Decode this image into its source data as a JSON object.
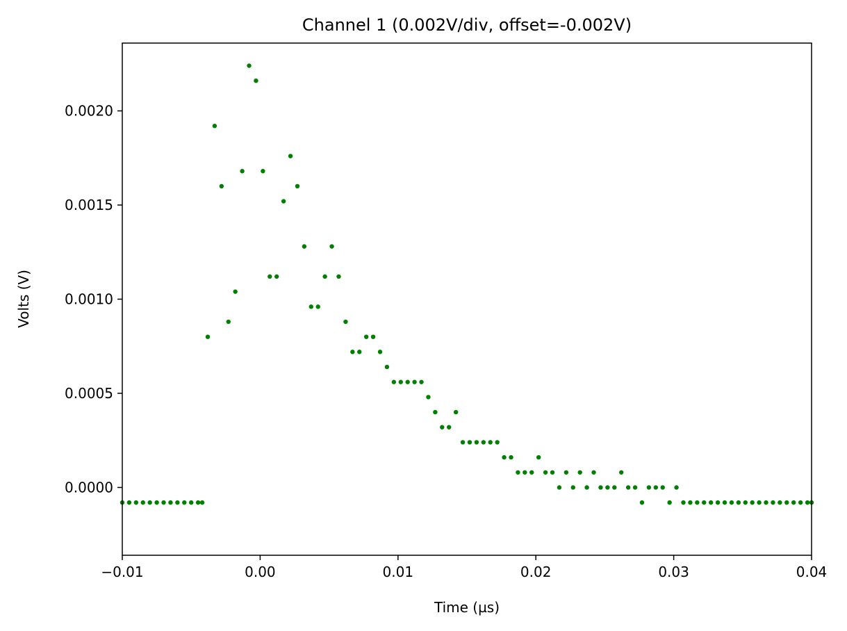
{
  "chart_data": {
    "type": "scatter",
    "title": "Channel 1 (0.002V/div, offset=-0.002V)",
    "xlabel": "Time (µs)",
    "ylabel": "Volts (V)",
    "xlim": [
      -0.01,
      0.04
    ],
    "ylim": [
      -0.00036,
      0.00236
    ],
    "xticks": [
      -0.01,
      0.0,
      0.01,
      0.02,
      0.03,
      0.04
    ],
    "xtick_labels": [
      "−0.01",
      "0.00",
      "0.01",
      "0.02",
      "0.03",
      "0.04"
    ],
    "yticks": [
      0.0,
      0.0005,
      0.001,
      0.0015,
      0.002
    ],
    "ytick_labels": [
      "0.0000",
      "0.0005",
      "0.0010",
      "0.0015",
      "0.0020"
    ],
    "grid": false,
    "legend": "none",
    "marker_color": "#008000",
    "series": [
      {
        "x": [
          -0.01,
          -0.0095,
          -0.009,
          -0.0085,
          -0.008,
          -0.0075,
          -0.007,
          -0.0065,
          -0.006,
          -0.0055,
          -0.005,
          -0.0045,
          -0.0042,
          -0.0038,
          -0.0033,
          -0.0028,
          -0.0023,
          -0.0018,
          -0.0013,
          -0.0008,
          -0.0003,
          0.0002,
          0.0007,
          0.0012,
          0.0017,
          0.0022,
          0.0027,
          0.0032,
          0.0037,
          0.0042,
          0.0047,
          0.0052,
          0.0057,
          0.0062,
          0.0067,
          0.0072,
          0.0077,
          0.0082,
          0.0087,
          0.0092,
          0.0097,
          0.0102,
          0.0107,
          0.0112,
          0.0117,
          0.0122,
          0.0127,
          0.0132,
          0.0137,
          0.0142,
          0.0147,
          0.0152,
          0.0157,
          0.0162,
          0.0167,
          0.0172,
          0.0177,
          0.0182,
          0.0187,
          0.0192,
          0.0197,
          0.0202,
          0.0207,
          0.0212,
          0.0217,
          0.0222,
          0.0227,
          0.0232,
          0.0237,
          0.0242,
          0.0247,
          0.0252,
          0.0257,
          0.0262,
          0.0267,
          0.0272,
          0.0277,
          0.0282,
          0.0287,
          0.0292,
          0.0297,
          0.0302,
          0.0307,
          0.0312,
          0.0317,
          0.0322,
          0.0327,
          0.0332,
          0.0337,
          0.0342,
          0.0347,
          0.0352,
          0.0357,
          0.0362,
          0.0367,
          0.0372,
          0.0377,
          0.0382,
          0.0387,
          0.0392,
          0.0397,
          0.04
        ],
        "y": [
          -8e-05,
          -8e-05,
          -8e-05,
          -8e-05,
          -8e-05,
          -8e-05,
          -8e-05,
          -8e-05,
          -8e-05,
          -8e-05,
          -8e-05,
          -8e-05,
          -8e-05,
          0.0008,
          0.00192,
          0.0016,
          0.00088,
          0.00104,
          0.00168,
          0.00224,
          0.00216,
          0.00168,
          0.00112,
          0.00112,
          0.00152,
          0.00176,
          0.0016,
          0.00128,
          0.00096,
          0.00096,
          0.00112,
          0.00128,
          0.00112,
          0.00088,
          0.00072,
          0.00072,
          0.0008,
          0.0008,
          0.00072,
          0.00064,
          0.00056,
          0.00056,
          0.00056,
          0.00056,
          0.00056,
          0.00048,
          0.0004,
          0.00032,
          0.00032,
          0.0004,
          0.00024,
          0.00024,
          0.00024,
          0.00024,
          0.00024,
          0.00024,
          0.00016,
          0.00016,
          8e-05,
          8e-05,
          8e-05,
          0.00016,
          8e-05,
          8e-05,
          0.0,
          8e-05,
          0.0,
          8e-05,
          0.0,
          8e-05,
          0.0,
          0.0,
          0.0,
          8e-05,
          0.0,
          0.0,
          -8e-05,
          0.0,
          0.0,
          0.0,
          -8e-05,
          0.0,
          -8e-05,
          -8e-05,
          -8e-05,
          -8e-05,
          -8e-05,
          -8e-05,
          -8e-05,
          -8e-05,
          -8e-05,
          -8e-05,
          -8e-05,
          -8e-05,
          -8e-05,
          -8e-05,
          -8e-05,
          -8e-05,
          -8e-05,
          -8e-05,
          -8e-05,
          -8e-05
        ]
      }
    ]
  }
}
